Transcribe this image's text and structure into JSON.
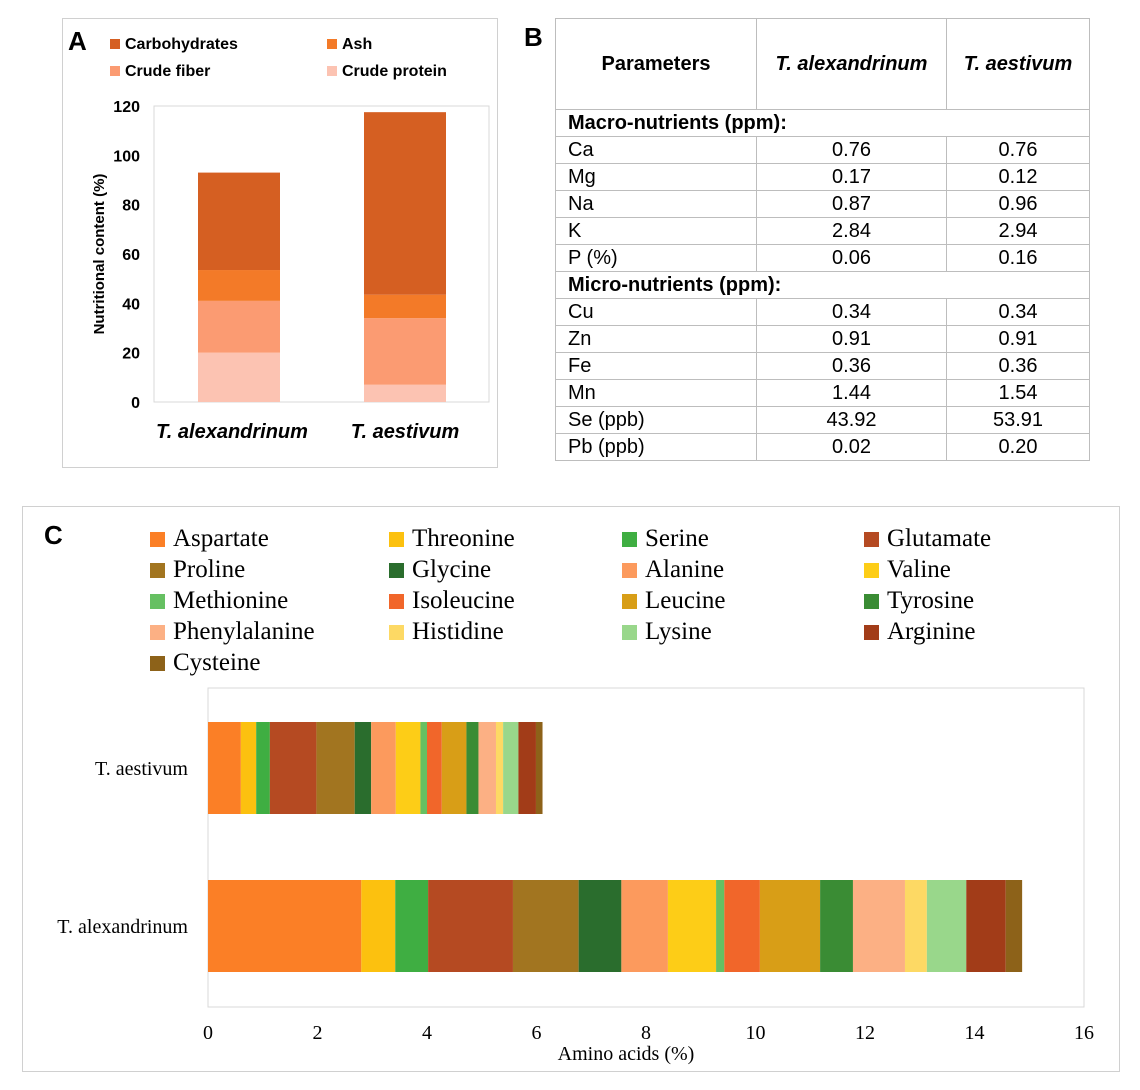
{
  "panels": {
    "a": "A",
    "b": "B",
    "c": "C"
  },
  "chart_data": [
    {
      "panel": "A",
      "type": "bar",
      "stacked": true,
      "categories": [
        "T. alexandrinum",
        "T. aestivum"
      ],
      "series": [
        {
          "name": "Crude protein",
          "values": [
            20,
            7
          ],
          "color": "#fcc3b2"
        },
        {
          "name": "Crude fiber",
          "values": [
            21,
            27
          ],
          "color": "#fb9b72"
        },
        {
          "name": "Ash",
          "values": [
            12.5,
            9.5
          ],
          "color": "#f37a28"
        },
        {
          "name": "Carbohydrates",
          "values": [
            39.5,
            74
          ],
          "color": "#d55f22"
        }
      ],
      "legend": [
        "Carbohydrates",
        "Ash",
        "Crude fiber",
        "Crude protein"
      ],
      "ylabel": "Nutritional content (%)",
      "xlabel": "",
      "ylim": [
        0,
        120
      ],
      "yticks": [
        "0",
        "20",
        "40",
        "60",
        "80",
        "100",
        "120"
      ],
      "grid": false,
      "legend_position": "top"
    },
    {
      "panel": "B",
      "type": "table",
      "headers": [
        "Parameters",
        "T. alexandrinum",
        "T. aestivum"
      ],
      "sections": [
        {
          "title": "Macro-nutrients (ppm):",
          "rows": [
            [
              "Ca",
              "0.76",
              "0.76"
            ],
            [
              "Mg",
              "0.17",
              "0.12"
            ],
            [
              "Na",
              "0.87",
              "0.96"
            ],
            [
              "K",
              "2.84",
              "2.94"
            ],
            [
              "P (%)",
              "0.06",
              "0.16"
            ]
          ]
        },
        {
          "title": "Micro-nutrients (ppm):",
          "rows": [
            [
              "Cu",
              "0.34",
              "0.34"
            ],
            [
              "Zn",
              "0.91",
              "0.91"
            ],
            [
              "Fe",
              "0.36",
              "0.36"
            ],
            [
              "Mn",
              "1.44",
              "1.54"
            ],
            [
              "Se (ppb)",
              "43.92",
              "53.91"
            ],
            [
              "Pb (ppb)",
              "0.02",
              "0.20"
            ]
          ]
        }
      ]
    },
    {
      "panel": "C",
      "type": "bar",
      "orientation": "horizontal",
      "stacked": true,
      "categories": [
        "T. aestivum",
        "T. alexandrinum"
      ],
      "series": [
        {
          "name": "Aspartate",
          "values": [
            0.6,
            2.8
          ],
          "color": "#fb7f26"
        },
        {
          "name": "Threonine",
          "values": [
            0.28,
            0.62
          ],
          "color": "#fcc10f"
        },
        {
          "name": "Serine",
          "values": [
            0.25,
            0.6
          ],
          "color": "#3fae42"
        },
        {
          "name": "Glutamate",
          "values": [
            0.85,
            1.55
          ],
          "color": "#b54a22"
        },
        {
          "name": "Proline",
          "values": [
            0.7,
            1.2
          ],
          "color": "#a27520"
        },
        {
          "name": "Glycine",
          "values": [
            0.3,
            0.78
          ],
          "color": "#2a6d2d"
        },
        {
          "name": "Alanine",
          "values": [
            0.45,
            0.85
          ],
          "color": "#fc9a5d"
        },
        {
          "name": "Valine",
          "values": [
            0.45,
            0.88
          ],
          "color": "#fdcd17"
        },
        {
          "name": "Methionine",
          "values": [
            0.12,
            0.15
          ],
          "color": "#66c062"
        },
        {
          "name": "Isoleucine",
          "values": [
            0.27,
            0.65
          ],
          "color": "#f1662a"
        },
        {
          "name": "Leucine",
          "values": [
            0.45,
            1.1
          ],
          "color": "#d89e17"
        },
        {
          "name": "Tyrosine",
          "values": [
            0.22,
            0.6
          ],
          "color": "#3a8c34"
        },
        {
          "name": "Phenylalanine",
          "values": [
            0.32,
            0.95
          ],
          "color": "#fcb084"
        },
        {
          "name": "Histidine",
          "values": [
            0.13,
            0.4
          ],
          "color": "#fdd964"
        },
        {
          "name": "Lysine",
          "values": [
            0.28,
            0.72
          ],
          "color": "#99d78b"
        },
        {
          "name": "Arginine",
          "values": [
            0.32,
            0.72
          ],
          "color": "#a23c18"
        },
        {
          "name": "Cysteine",
          "values": [
            0.12,
            0.3
          ],
          "color": "#8d6219"
        }
      ],
      "xlabel": "Amino acids (%)",
      "ylabel": "",
      "xlim": [
        0,
        16
      ],
      "xticks": [
        "0",
        "2",
        "4",
        "6",
        "8",
        "10",
        "12",
        "14",
        "16"
      ],
      "grid": false,
      "legend_position": "top"
    }
  ]
}
